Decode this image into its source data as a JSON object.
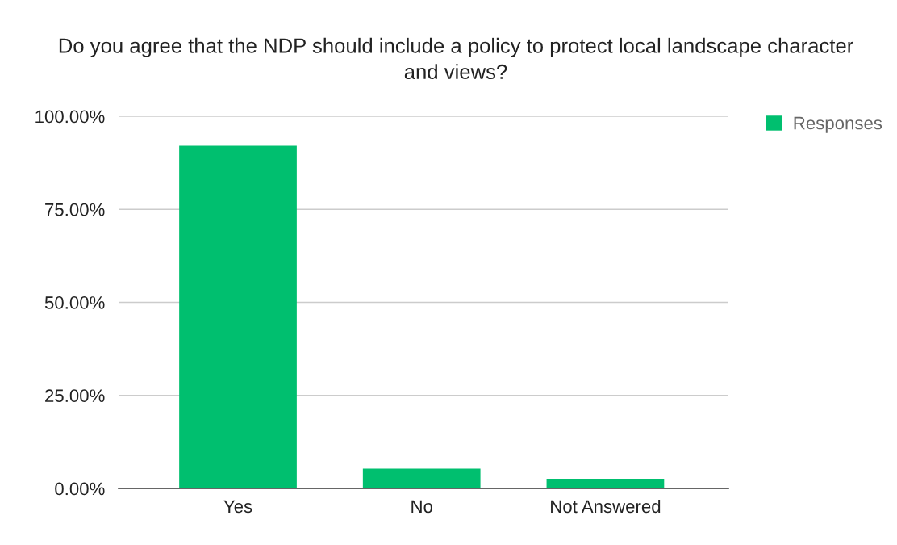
{
  "chart_data": {
    "type": "bar",
    "title": "Do you agree that the NDP should include a policy to protect local landscape character and views?",
    "categories": [
      "Yes",
      "No",
      "Not Answered"
    ],
    "series": [
      {
        "name": "Responses",
        "color": "#00bf6f",
        "values": [
          92.1,
          5.3,
          2.6
        ]
      }
    ],
    "ylim": [
      0,
      100
    ],
    "yticks": [
      {
        "value": 0,
        "label": "0.00%"
      },
      {
        "value": 25,
        "label": "25.00%"
      },
      {
        "value": 50,
        "label": "50.00%"
      },
      {
        "value": 75,
        "label": "75.00%"
      },
      {
        "value": 100,
        "label": "100.00%"
      }
    ],
    "grid": "y",
    "legend": "top right"
  }
}
